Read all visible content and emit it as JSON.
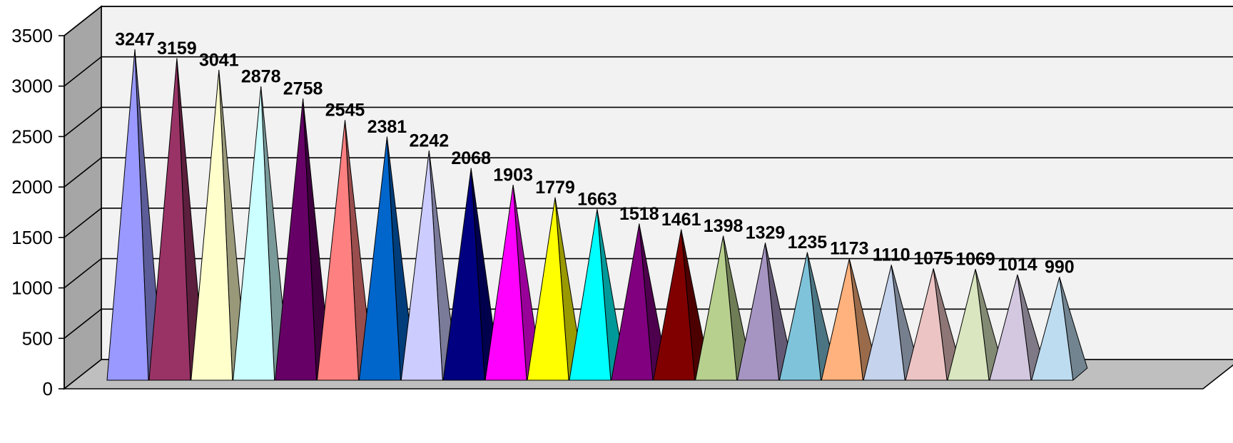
{
  "chart_data": {
    "type": "bar",
    "subtype": "3d-pyramid",
    "title": "",
    "xlabel": "",
    "ylabel": "",
    "ylim": [
      0,
      3500
    ],
    "yticks": [
      0,
      500,
      1000,
      1500,
      2000,
      2500,
      3000,
      3500
    ],
    "grid": true,
    "legend": "none",
    "values": [
      3247,
      3159,
      3041,
      2878,
      2758,
      2545,
      2381,
      2242,
      2068,
      1903,
      1779,
      1663,
      1518,
      1461,
      1398,
      1329,
      1235,
      1173,
      1110,
      1075,
      1069,
      1014,
      990
    ],
    "colors": [
      "#9999FF",
      "#993366",
      "#FFFFCC",
      "#CCFFFF",
      "#660066",
      "#FF8080",
      "#0066CC",
      "#CCCCFF",
      "#000080",
      "#FF00FF",
      "#FFFF00",
      "#00FFFF",
      "#800080",
      "#800000",
      "#B7D08E",
      "#A695C2",
      "#7EC3DA",
      "#FFB27D",
      "#C5D3EC",
      "#EDC4C4",
      "#D9E6BF",
      "#D3C8E0",
      "#BDDCF0"
    ],
    "wall_color": "#F2F2F2",
    "side_wall_color": "#A6A6A6",
    "floor_color": "#BFBFBF"
  }
}
